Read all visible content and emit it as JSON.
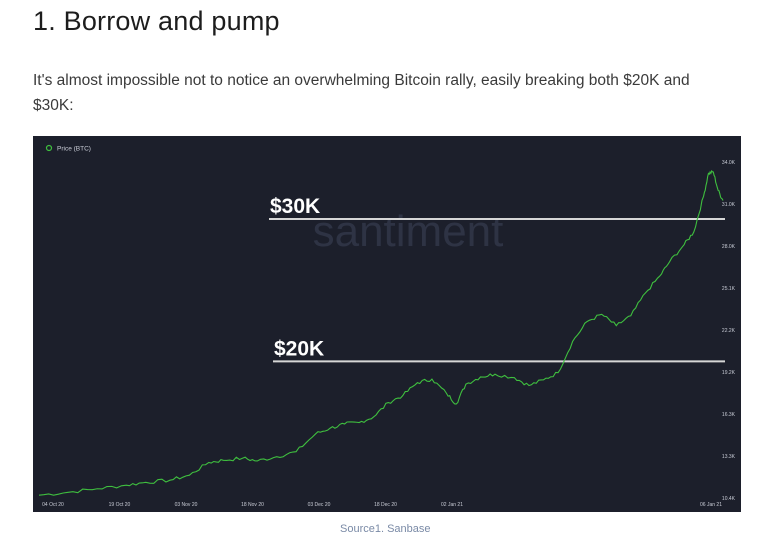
{
  "article": {
    "heading": "1. Borrow and pump",
    "intro": "It's almost impossible not to notice an overwhelming Bitcoin rally, easily breaking both $20K and $30K:",
    "source": "Source1. Sanbase"
  },
  "chart_data": {
    "type": "line",
    "legend": "Price (BTC)",
    "watermark": "santiment",
    "x_ticks": [
      "04 Oct 20",
      "19 Oct 20",
      "03 Nov 20",
      "18 Nov 20",
      "03 Dec 20",
      "18 Dec 20",
      "02 Jan 21",
      "06 Jan 21"
    ],
    "y_ticks": [
      "10.4K",
      "13.3K",
      "16.3K",
      "19.2K",
      "22.2K",
      "25.1K",
      "28.0K",
      "31.0K",
      "34.0K"
    ],
    "ylim": [
      10400,
      34000
    ],
    "annotations": [
      {
        "label": "$30K",
        "value": 30000
      },
      {
        "label": "$20K",
        "value": 20000
      }
    ],
    "series": [
      {
        "color": "#3fbf3f",
        "points": [
          [
            0,
            10600
          ],
          [
            6,
            10800
          ],
          [
            12,
            11050
          ],
          [
            18,
            11300
          ],
          [
            22,
            11500
          ],
          [
            27,
            11650
          ],
          [
            31,
            12000
          ],
          [
            35,
            12900
          ],
          [
            38,
            13050
          ],
          [
            42,
            13200
          ],
          [
            45,
            13000
          ],
          [
            49,
            13300
          ],
          [
            53,
            13650
          ],
          [
            57,
            14900
          ],
          [
            60,
            15300
          ],
          [
            63,
            15600
          ],
          [
            66,
            15700
          ],
          [
            69,
            16100
          ],
          [
            72,
            17100
          ],
          [
            75,
            17600
          ],
          [
            78,
            18500
          ],
          [
            81,
            18750
          ],
          [
            84,
            17750
          ],
          [
            86,
            17000
          ],
          [
            88,
            18400
          ],
          [
            91,
            18900
          ],
          [
            94,
            19100
          ],
          [
            98,
            18850
          ],
          [
            101,
            18300
          ],
          [
            104,
            18700
          ],
          [
            107,
            19200
          ],
          [
            110,
            21400
          ],
          [
            113,
            22800
          ],
          [
            116,
            23300
          ],
          [
            119,
            22500
          ],
          [
            122,
            23200
          ],
          [
            125,
            24800
          ],
          [
            128,
            26000
          ],
          [
            130,
            27000
          ],
          [
            133,
            28200
          ],
          [
            135,
            29100
          ],
          [
            137,
            31600
          ],
          [
            138,
            33200
          ],
          [
            139,
            33300
          ],
          [
            140,
            32000
          ],
          [
            141,
            31300
          ]
        ]
      }
    ]
  }
}
